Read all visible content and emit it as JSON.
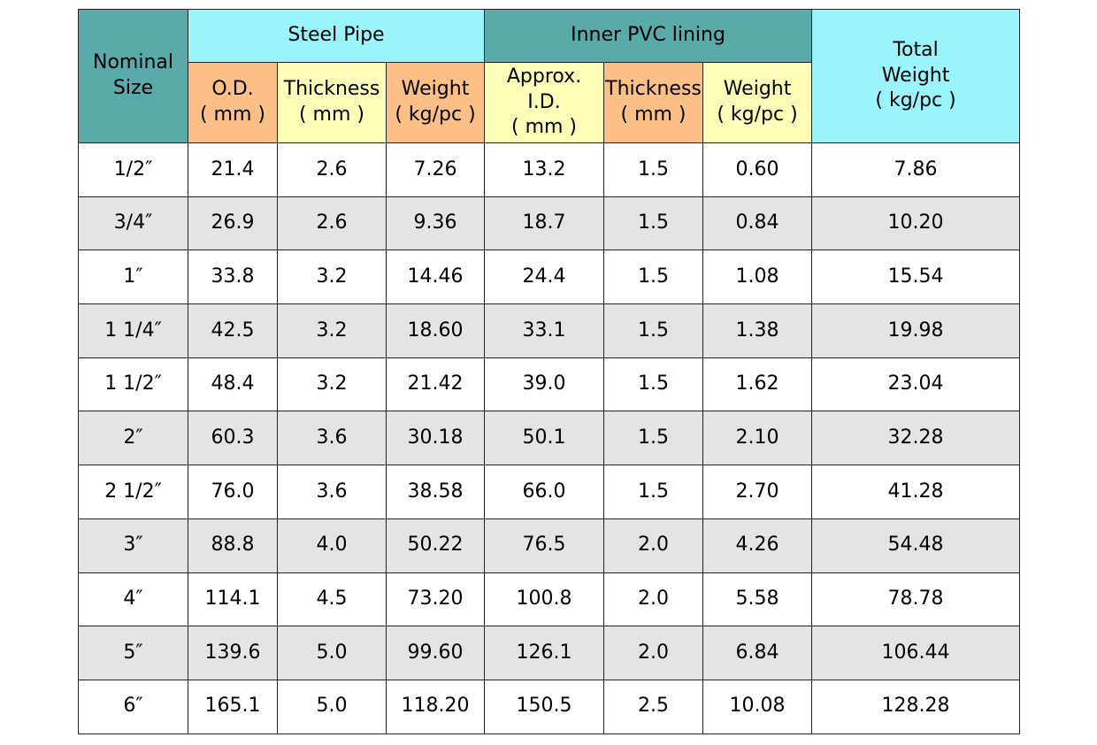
{
  "header": {
    "nominal_size": "Nominal\nSize",
    "steel_pipe": "Steel Pipe",
    "inner_pvc": "Inner PVC lining",
    "total_weight": "Total\nWeight\n( kg/pc )",
    "sub": {
      "steel_od": "O.D.\n( mm )",
      "steel_thickness": "Thickness\n( mm )",
      "steel_weight": "Weight\n( kg/pc )",
      "pvc_id": "Approx.\nI.D.\n( mm )",
      "pvc_thickness": "Thickness\n( mm )",
      "pvc_weight": "Weight\n( kg/pc )"
    }
  },
  "colors": {
    "teal": "#5aaaa9",
    "cyan": "#99f4fb",
    "orange": "#fcbf86",
    "yellow": "#fefeb8",
    "row_alt": "#e4e4e4"
  },
  "rows": [
    [
      "1/2″",
      "21.4",
      "2.6",
      "7.26",
      "13.2",
      "1.5",
      "0.60",
      "7.86"
    ],
    [
      "3/4″",
      "26.9",
      "2.6",
      "9.36",
      "18.7",
      "1.5",
      "0.84",
      "10.20"
    ],
    [
      "1″",
      "33.8",
      "3.2",
      "14.46",
      "24.4",
      "1.5",
      "1.08",
      "15.54"
    ],
    [
      "1 1/4″",
      "42.5",
      "3.2",
      "18.60",
      "33.1",
      "1.5",
      "1.38",
      "19.98"
    ],
    [
      "1 1/2″",
      "48.4",
      "3.2",
      "21.42",
      "39.0",
      "1.5",
      "1.62",
      "23.04"
    ],
    [
      "2″",
      "60.3",
      "3.6",
      "30.18",
      "50.1",
      "1.5",
      "2.10",
      "32.28"
    ],
    [
      "2 1/2″",
      "76.0",
      "3.6",
      "38.58",
      "66.0",
      "1.5",
      "2.70",
      "41.28"
    ],
    [
      "3″",
      "88.8",
      "4.0",
      "50.22",
      "76.5",
      "2.0",
      "4.26",
      "54.48"
    ],
    [
      "4″",
      "114.1",
      "4.5",
      "73.20",
      "100.8",
      "2.0",
      "5.58",
      "78.78"
    ],
    [
      "5″",
      "139.6",
      "5.0",
      "99.60",
      "126.1",
      "2.0",
      "6.84",
      "106.44"
    ],
    [
      "6″",
      "165.1",
      "5.0",
      "118.20",
      "150.5",
      "2.5",
      "10.08",
      "128.28"
    ]
  ]
}
